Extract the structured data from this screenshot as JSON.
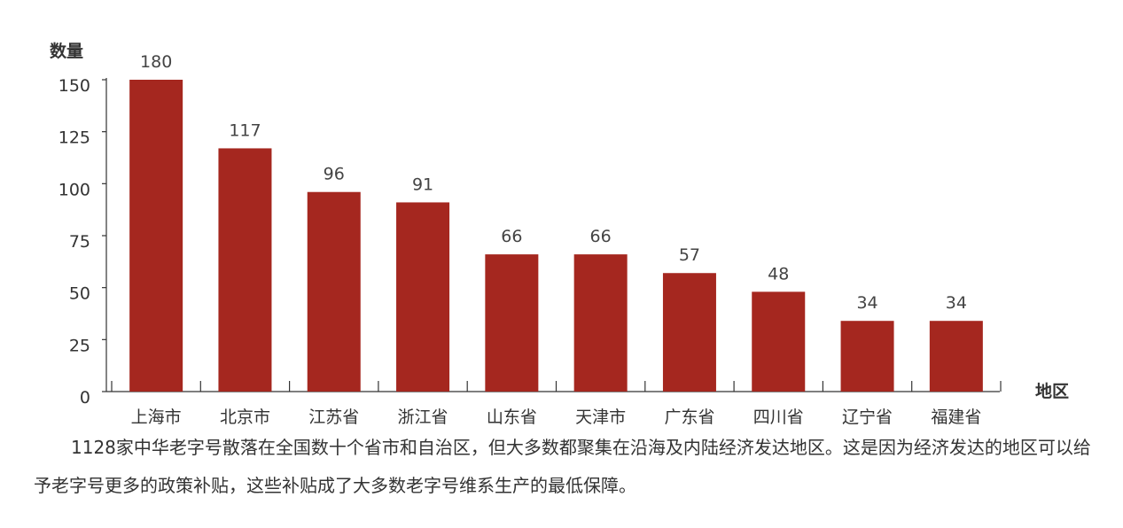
{
  "chart_data": {
    "type": "bar",
    "ylabel": "数量",
    "xlabel": "地区",
    "ylim": [
      0,
      150
    ],
    "yticks": [
      0,
      25,
      50,
      75,
      100,
      125,
      150
    ],
    "bar_color": "#a5271f",
    "grid": false,
    "categories": [
      "上海市",
      "北京市",
      "江苏省",
      "浙江省",
      "山东省",
      "天津市",
      "广东省",
      "四川省",
      "辽宁省",
      "福建省"
    ],
    "values": [
      180,
      117,
      96,
      91,
      66,
      66,
      57,
      48,
      34,
      34
    ],
    "data_labels": [
      "180",
      "117",
      "96",
      "91",
      "66",
      "66",
      "57",
      "48",
      "34",
      "34"
    ]
  },
  "caption": "1128家中华老字号散落在全国数十个省市和自治区，但大多数都聚集在沿海及内陆经济发达地区。这是因为经济发达的地区可以给予老字号更多的政策补贴，这些补贴成了大多数老字号维系生产的最低保障。"
}
